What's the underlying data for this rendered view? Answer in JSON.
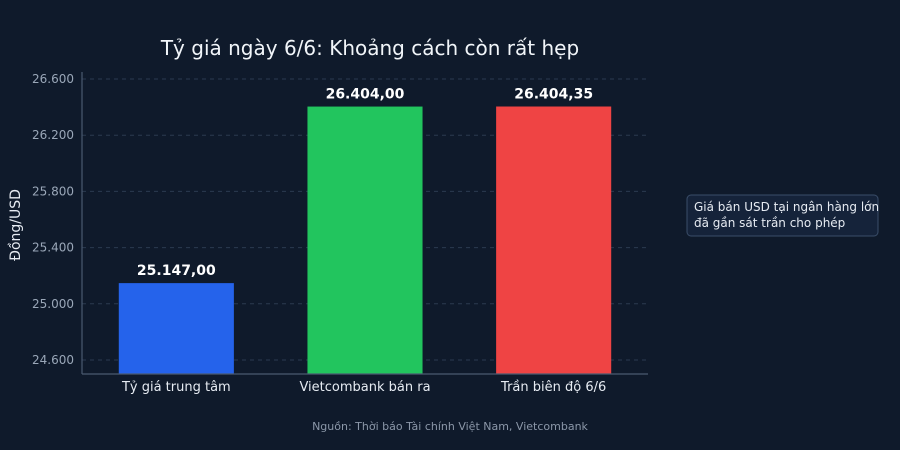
{
  "chart_data": {
    "type": "bar",
    "title": "Tỷ giá ngày 6/6: Khoảng cách còn rất hẹp",
    "ylabel": "Đồng/USD",
    "xlabel": "",
    "categories": [
      "Tỷ giá trung tâm",
      "Vietcombank bán ra",
      "Trần biên độ 6/6"
    ],
    "values": [
      25147.0,
      26404.0,
      26404.35
    ],
    "value_labels": [
      "25.147,00",
      "26.404,00",
      "26.404,35"
    ],
    "colors": [
      "#2563eb",
      "#22c55e",
      "#ef4444"
    ],
    "ylim": [
      24500,
      26650
    ],
    "yticks": [
      24600,
      25000,
      25400,
      25800,
      26200,
      26600
    ],
    "ytick_labels": [
      "24.600",
      "25.000",
      "25.400",
      "25.800",
      "26.200",
      "26.600"
    ],
    "grid": true,
    "annotation": [
      "Giá bán USD tại ngân hàng lớn",
      "đã gần sát trần cho phép"
    ],
    "source": "Nguồn: Thời báo Tài chính Việt Nam, Vietcombank"
  }
}
